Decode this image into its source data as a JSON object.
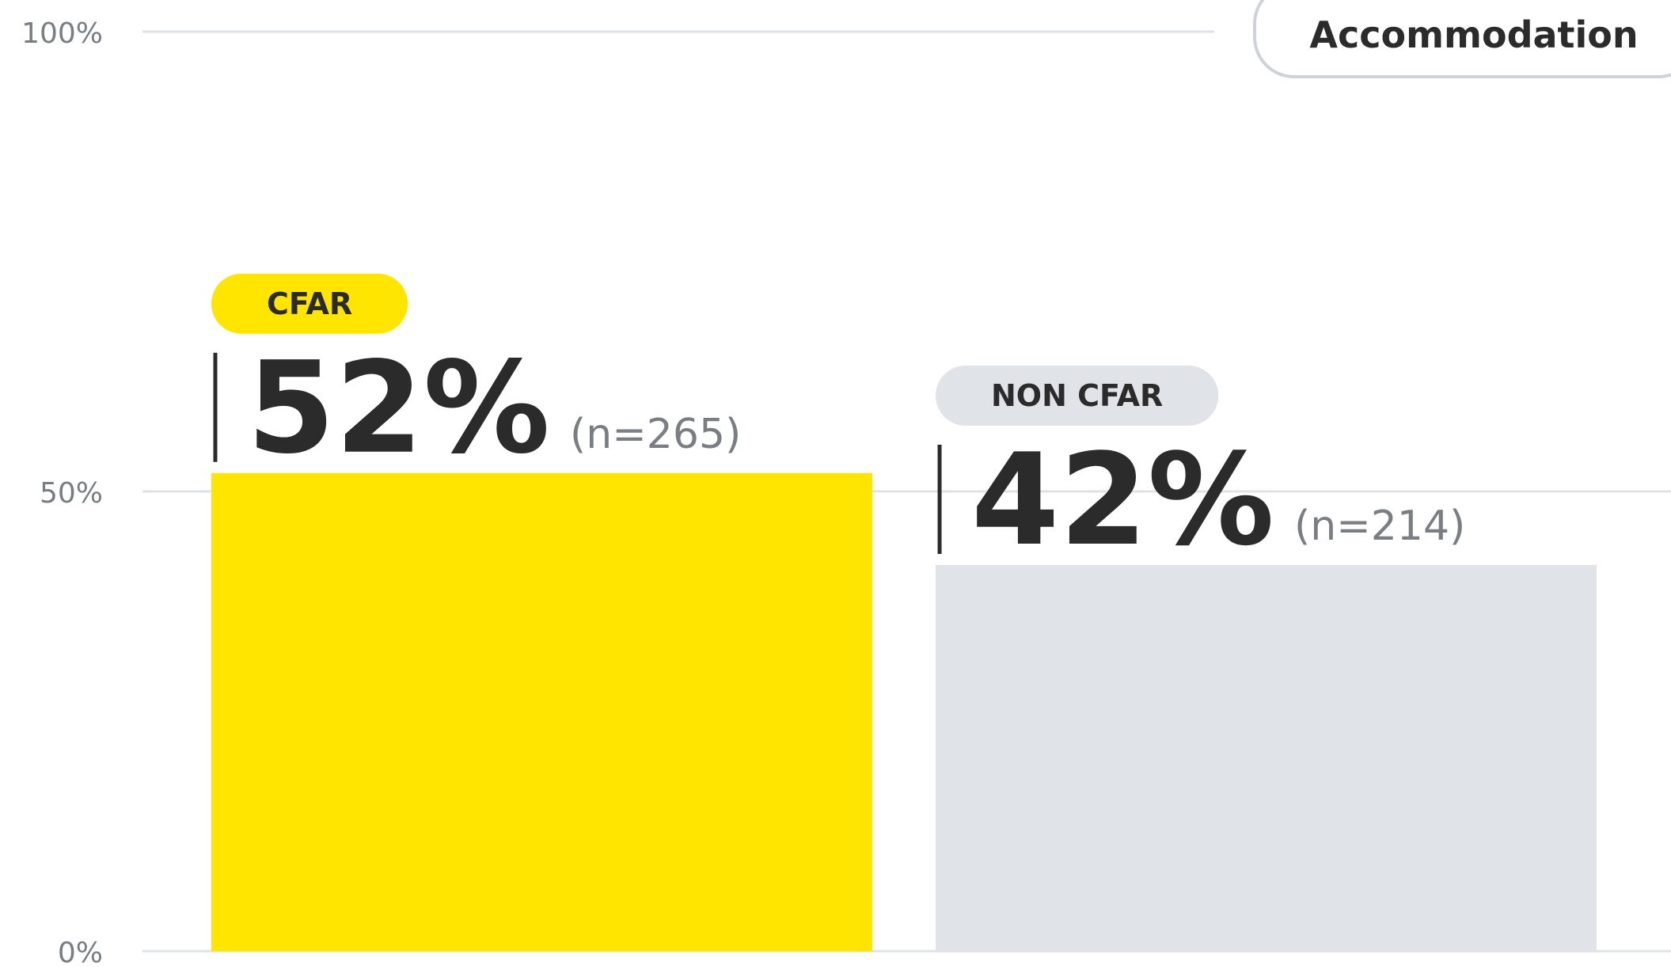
{
  "chart_data": {
    "type": "bar",
    "categories": [
      "CFAR",
      "NON CFAR"
    ],
    "values": [
      52,
      42
    ],
    "value_labels": [
      "52%",
      "42%"
    ],
    "sample_labels": [
      "(n=265)",
      "(n=214)"
    ],
    "colors": [
      "#ffe500",
      "#e0e3e7"
    ],
    "ylim": [
      0,
      100
    ],
    "yticks": [
      {
        "value": 0,
        "label": "0%"
      },
      {
        "value": 50,
        "label": "50%"
      },
      {
        "value": 100,
        "label": "100%"
      }
    ],
    "grid": true,
    "active_filter": "Accommodation"
  }
}
